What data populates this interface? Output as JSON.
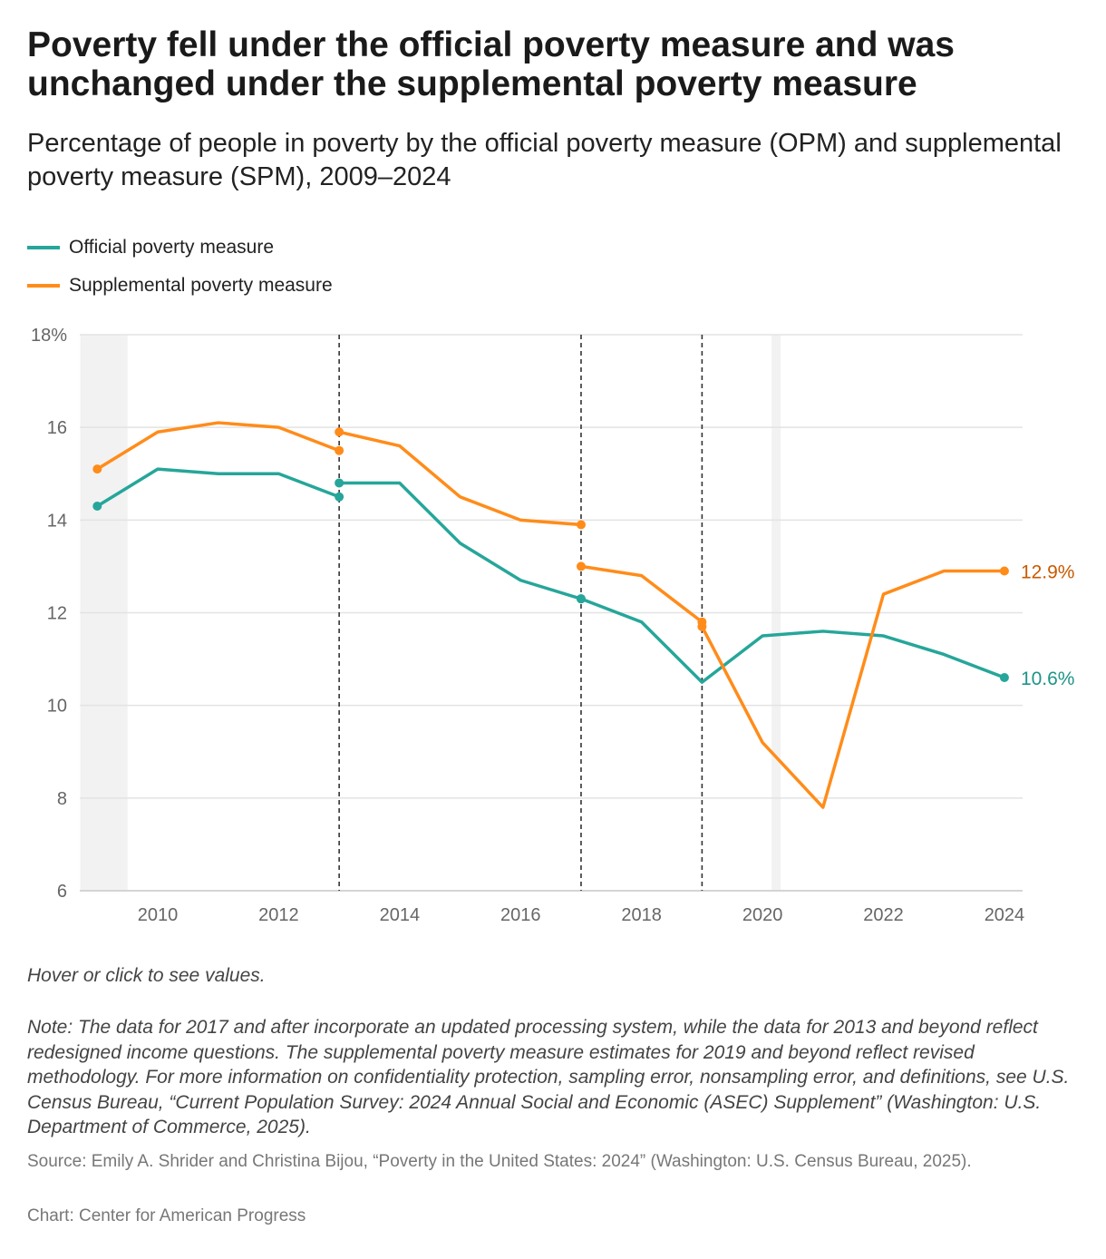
{
  "title": "Poverty fell under the official poverty measure and was unchanged under the supplemental poverty measure",
  "subtitle": "Percentage of people in poverty by the official poverty measure (OPM) and supplemental poverty measure (SPM), 2009–2024",
  "hint": "Hover or click to see values.",
  "note": "Note: The data for 2017 and after incorporate an updated processing system, while the data for 2013 and beyond reflect redesigned income questions. The supplemental poverty measure estimates for 2019 and beyond reflect revised methodology. For more information on confidentiality protection, sampling error, nonsampling error, and definitions, see U.S. Census Bureau, “Current Population Survey: 2024 Annual Social and Economic (ASEC) Supplement” (Washington: U.S. Department of Commerce, 2025).",
  "source": "Source: Emily A. Shrider and Christina Bijou, “Poverty in the United States: 2024” (Washington: U.S. Census Bureau, 2025).",
  "credit": "Chart: Center for American Progress",
  "chart_data": {
    "type": "line",
    "ylim": [
      6,
      18
    ],
    "xlim": [
      2009,
      2024
    ],
    "yticks": [
      "18%",
      "16",
      "14",
      "12",
      "10",
      "8",
      "6"
    ],
    "ytick_values": [
      18,
      16,
      14,
      12,
      10,
      8,
      6
    ],
    "xticks": [
      "2010",
      "2012",
      "2014",
      "2016",
      "2018",
      "2020",
      "2022",
      "2024"
    ],
    "grid": "horizontal",
    "legend_position": "top-left",
    "break_lines": [
      2013,
      2017,
      2019
    ],
    "shaded_ranges": [
      [
        2009,
        2009.5
      ],
      [
        2020.15,
        2020.3
      ]
    ],
    "series": [
      {
        "name": "Official poverty measure",
        "color": "#26a69a",
        "label_color": "#1e9488",
        "end_label": "10.6%",
        "segments": [
          {
            "x": [
              2009,
              2010,
              2011,
              2012,
              2013
            ],
            "y": [
              14.3,
              15.1,
              15.0,
              15.0,
              14.5
            ]
          },
          {
            "x": [
              2013,
              2014,
              2015,
              2016,
              2017
            ],
            "y": [
              14.8,
              14.8,
              13.5,
              12.7,
              12.3
            ]
          },
          {
            "x": [
              2017,
              2018,
              2019,
              2020,
              2021,
              2022,
              2023,
              2024
            ],
            "y": [
              12.3,
              11.8,
              10.5,
              11.5,
              11.6,
              11.5,
              11.1,
              10.6
            ]
          }
        ]
      },
      {
        "name": "Supplemental poverty measure",
        "color": "#ff8c1a",
        "label_color": "#c85a00",
        "end_label": "12.9%",
        "segments": [
          {
            "x": [
              2009,
              2010,
              2011,
              2012,
              2013
            ],
            "y": [
              15.1,
              15.9,
              16.1,
              16.0,
              15.5
            ]
          },
          {
            "x": [
              2013,
              2014,
              2015,
              2016,
              2017
            ],
            "y": [
              15.9,
              15.6,
              14.5,
              14.0,
              13.9
            ]
          },
          {
            "x": [
              2017,
              2018,
              2019
            ],
            "y": [
              13.0,
              12.8,
              11.8
            ]
          },
          {
            "x": [
              2019,
              2020,
              2021,
              2022,
              2023,
              2024
            ],
            "y": [
              11.7,
              9.2,
              7.8,
              12.4,
              12.9,
              12.9
            ]
          }
        ]
      }
    ]
  }
}
